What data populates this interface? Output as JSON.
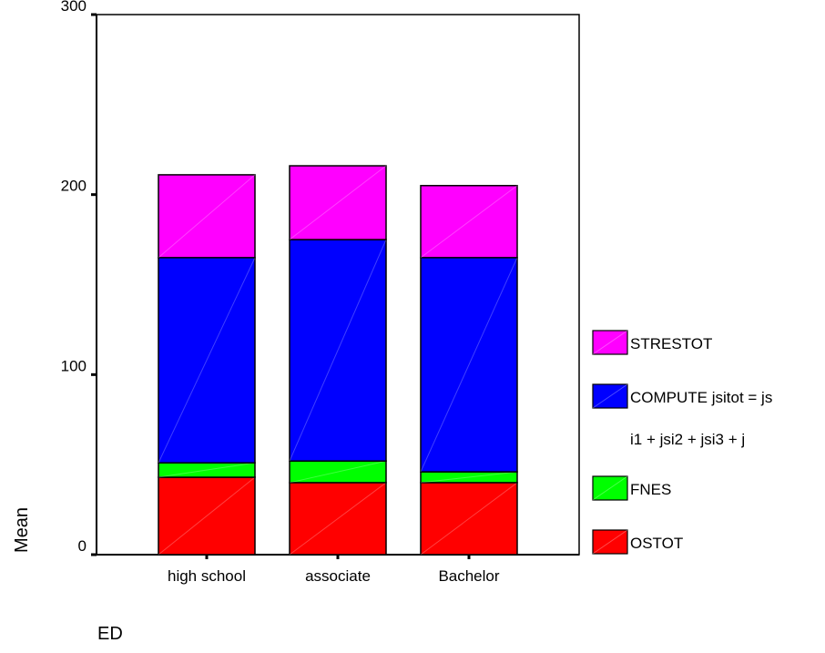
{
  "chart_data": {
    "type": "bar",
    "stacked": true,
    "title": "",
    "xlabel": "ED",
    "ylabel": "Mean",
    "ylim": [
      0,
      300
    ],
    "yticks": [
      0,
      100,
      200,
      300
    ],
    "categories": [
      "high school",
      "associate",
      "Bachelor"
    ],
    "series": [
      {
        "name": "OSTOT",
        "color": "#ff0000",
        "values": [
          43,
          40,
          40
        ]
      },
      {
        "name": "FNES",
        "color": "#00ff00",
        "values": [
          8,
          12,
          6
        ]
      },
      {
        "name": "COMPUTE  jsitot = js i1 + jsi2 + jsi3 + j",
        "legend_lines": [
          "COMPUTE  jsitot = js",
          "i1 + jsi2 + jsi3 + j"
        ],
        "color": "#0000ff",
        "values": [
          114,
          123,
          119
        ]
      },
      {
        "name": "STRESTOT",
        "color": "#ff00ff",
        "values": [
          46,
          41,
          40
        ]
      }
    ],
    "grid": false,
    "legend_position": "right"
  }
}
